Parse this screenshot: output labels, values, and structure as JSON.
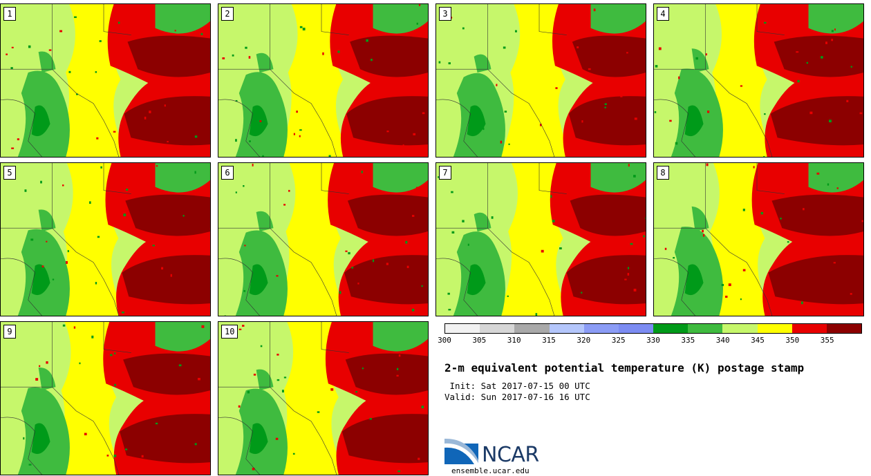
{
  "panels": [
    {
      "label": "1"
    },
    {
      "label": "2"
    },
    {
      "label": "3"
    },
    {
      "label": "4"
    },
    {
      "label": "5"
    },
    {
      "label": "6"
    },
    {
      "label": "7"
    },
    {
      "label": "8"
    },
    {
      "label": "9"
    },
    {
      "label": "10"
    }
  ],
  "colorbar": {
    "colors": [
      "#f2f2f2",
      "#d6d6d6",
      "#a9a9a9",
      "#b4c6fb",
      "#8b9cf5",
      "#7c8cf2",
      "#009a19",
      "#3fbb3f",
      "#c6f76b",
      "#ffff00",
      "#e80000",
      "#8c0000"
    ],
    "ticks": [
      "300",
      "305",
      "310",
      "315",
      "320",
      "325",
      "330",
      "335",
      "340",
      "345",
      "350",
      "355"
    ]
  },
  "title": "2-m equivalent potential temperature (K) postage stamp",
  "init": " Init: Sat 2017-07-15 00 UTC",
  "valid": "Valid: Sun 2017-07-16 16 UTC",
  "logo": {
    "name": "NCAR",
    "url": "ensemble.ucar.edu"
  }
}
